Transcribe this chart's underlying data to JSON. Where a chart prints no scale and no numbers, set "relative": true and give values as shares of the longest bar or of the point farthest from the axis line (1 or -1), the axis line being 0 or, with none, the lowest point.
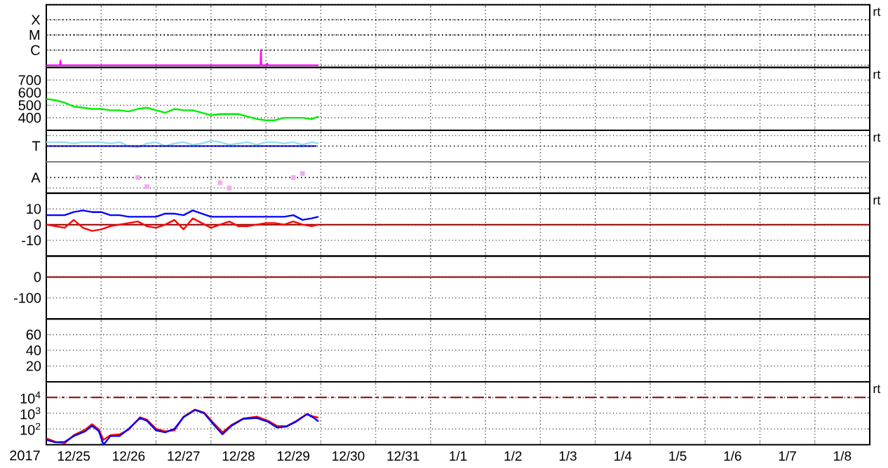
{
  "chart_data": [
    {
      "type": "line",
      "xlim": [
        "2017-12-25",
        "2018-01-09"
      ],
      "xticks": [
        {
          "value": "2017-12-26",
          "label": null
        },
        {
          "value": "2017-12-27",
          "label": null
        },
        {
          "value": "2017-12-28",
          "label": null
        },
        {
          "value": "2017-12-29",
          "label": null
        },
        {
          "value": "2017-12-30",
          "label": null
        },
        {
          "value": "2017-12-31",
          "label": null
        },
        {
          "value": "2018-01-01",
          "label": null
        },
        {
          "value": "2018-01-02",
          "label": null
        },
        {
          "value": "2018-01-03",
          "label": null
        },
        {
          "value": "2018-01-04",
          "label": null
        },
        {
          "value": "2018-01-05",
          "label": null
        },
        {
          "value": "2018-01-06",
          "label": null
        },
        {
          "value": "2018-01-07",
          "label": null
        },
        {
          "value": "2018-01-08",
          "label": null
        }
      ],
      "relative": true,
      "grid": true,
      "tick_labels": "y",
      "annotations": [
        "X",
        "M",
        "C",
        "rt"
      ],
      "series": [
        {
          "color": "#ff00ff",
          "x": [
            "2017-12-25T00:00",
            "2017-12-25T06:00",
            "2017-12-25T06:10",
            "2017-12-25T06:20",
            "2017-12-28T21:40",
            "2017-12-28T21:50",
            "2017-12-28T22:00",
            "2017-12-29T00:30",
            "2017-12-29T00:40",
            "2017-12-29T00:50",
            "2017-12-29T23:00"
          ],
          "values": [
            0,
            0,
            0.3,
            0,
            0,
            1,
            0,
            0,
            0.1,
            0,
            0
          ]
        }
      ]
    },
    {
      "type": "line",
      "xlim": [
        "2017-12-25",
        "2018-01-09"
      ],
      "xticks": [
        {
          "value": "2017-12-26",
          "label": null
        },
        {
          "value": "2017-12-27",
          "label": null
        },
        {
          "value": "2017-12-28",
          "label": null
        },
        {
          "value": "2017-12-29",
          "label": null
        },
        {
          "value": "2017-12-30",
          "label": null
        },
        {
          "value": "2017-12-31",
          "label": null
        },
        {
          "value": "2018-01-01",
          "label": null
        },
        {
          "value": "2018-01-02",
          "label": null
        },
        {
          "value": "2018-01-03",
          "label": null
        },
        {
          "value": "2018-01-04",
          "label": null
        },
        {
          "value": "2018-01-05",
          "label": null
        },
        {
          "value": "2018-01-06",
          "label": null
        },
        {
          "value": "2018-01-07",
          "label": null
        },
        {
          "value": "2018-01-08",
          "label": null
        }
      ],
      "ylim": [
        300,
        800
      ],
      "yticks": [
        400,
        500,
        600,
        700
      ],
      "grid": true,
      "tick_labels": "y",
      "annotations": [
        "rt"
      ],
      "x": [
        "2017-12-25T00:00",
        "2017-12-25T04:00",
        "2017-12-25T08:00",
        "2017-12-25T12:00",
        "2017-12-25T16:00",
        "2017-12-25T20:00",
        "2017-12-26T00:00",
        "2017-12-26T04:00",
        "2017-12-26T08:00",
        "2017-12-26T12:00",
        "2017-12-26T16:00",
        "2017-12-26T20:00",
        "2017-12-27T00:00",
        "2017-12-27T04:00",
        "2017-12-27T08:00",
        "2017-12-27T12:00",
        "2017-12-27T16:00",
        "2017-12-27T20:00",
        "2017-12-28T00:00",
        "2017-12-28T04:00",
        "2017-12-28T08:00",
        "2017-12-28T12:00",
        "2017-12-28T16:00",
        "2017-12-28T20:00",
        "2017-12-29T00:00",
        "2017-12-29T04:00",
        "2017-12-29T08:00",
        "2017-12-29T12:00",
        "2017-12-29T16:00",
        "2017-12-29T20:00",
        "2017-12-29T23:00"
      ],
      "series": [
        {
          "color": "#00ee00",
          "values": [
            550,
            540,
            520,
            490,
            480,
            470,
            470,
            460,
            460,
            450,
            470,
            480,
            460,
            440,
            470,
            460,
            460,
            440,
            420,
            430,
            430,
            430,
            410,
            390,
            380,
            380,
            400,
            400,
            400,
            390,
            410
          ]
        }
      ]
    },
    {
      "type": "line",
      "xlim": [
        "2017-12-25",
        "2018-01-09"
      ],
      "xticks": [
        {
          "value": "2017-12-26",
          "label": null
        },
        {
          "value": "2017-12-27",
          "label": null
        },
        {
          "value": "2017-12-28",
          "label": null
        },
        {
          "value": "2017-12-29",
          "label": null
        },
        {
          "value": "2017-12-30",
          "label": null
        },
        {
          "value": "2017-12-31",
          "label": null
        },
        {
          "value": "2018-01-01",
          "label": null
        },
        {
          "value": "2018-01-02",
          "label": null
        },
        {
          "value": "2018-01-03",
          "label": null
        },
        {
          "value": "2018-01-04",
          "label": null
        },
        {
          "value": "2018-01-05",
          "label": null
        },
        {
          "value": "2018-01-06",
          "label": null
        },
        {
          "value": "2018-01-07",
          "label": null
        },
        {
          "value": "2018-01-08",
          "label": null
        }
      ],
      "relative": true,
      "grid": true,
      "tick_labels": "y",
      "annotations": [
        "T",
        "A",
        "rt"
      ],
      "ref_lines": [
        {
          "axis": "y",
          "value": 0,
          "color": "#808080"
        }
      ],
      "x": [
        "2017-12-25T00:00",
        "2017-12-25T04:00",
        "2017-12-25T08:00",
        "2017-12-25T12:00",
        "2017-12-25T16:00",
        "2017-12-25T20:00",
        "2017-12-26T00:00",
        "2017-12-26T04:00",
        "2017-12-26T08:00",
        "2017-12-26T12:00",
        "2017-12-26T16:00",
        "2017-12-26T20:00",
        "2017-12-27T00:00",
        "2017-12-27T04:00",
        "2017-12-27T08:00",
        "2017-12-27T12:00",
        "2017-12-27T16:00",
        "2017-12-27T20:00",
        "2017-12-28T00:00",
        "2017-12-28T04:00",
        "2017-12-28T08:00",
        "2017-12-28T12:00",
        "2017-12-28T16:00",
        "2017-12-28T20:00",
        "2017-12-29T00:00",
        "2017-12-29T04:00",
        "2017-12-29T08:00",
        "2017-12-29T12:00",
        "2017-12-29T16:00",
        "2017-12-29T20:00",
        "2017-12-29T23:00"
      ],
      "series": [
        {
          "color": "#99ddf5",
          "values": [
            0.75,
            0.75,
            0.75,
            0.7,
            0.75,
            0.75,
            0.75,
            0.7,
            0.75,
            0.6,
            0.55,
            0.7,
            0.75,
            0.6,
            0.7,
            0.75,
            0.65,
            0.7,
            0.8,
            0.75,
            0.65,
            0.7,
            0.75,
            0.65,
            0.75,
            0.75,
            0.7,
            0.75,
            0.65,
            0.75,
            0.7
          ]
        },
        {
          "type": "scatter",
          "marker": "square",
          "color": "#f5aaf0",
          "values": [
            null,
            null,
            null,
            null,
            null,
            null,
            null,
            null,
            null,
            null,
            -0.6,
            -0.95,
            null,
            null,
            null,
            null,
            null,
            null,
            null,
            -0.8,
            -1,
            null,
            null,
            null,
            null,
            null,
            null,
            -0.6,
            -0.45,
            null,
            null
          ]
        },
        {
          "color": "#3333dd",
          "x": [
            "2017-12-25T00:00",
            "2017-12-29T22:00"
          ],
          "values": [
            0.6,
            0.6
          ]
        }
      ]
    },
    {
      "type": "line",
      "xlim": [
        "2017-12-25",
        "2018-01-09"
      ],
      "xticks": [
        {
          "value": "2017-12-26",
          "label": null
        },
        {
          "value": "2017-12-27",
          "label": null
        },
        {
          "value": "2017-12-28",
          "label": null
        },
        {
          "value": "2017-12-29",
          "label": null
        },
        {
          "value": "2017-12-30",
          "label": null
        },
        {
          "value": "2017-12-31",
          "label": null
        },
        {
          "value": "2018-01-01",
          "label": null
        },
        {
          "value": "2018-01-02",
          "label": null
        },
        {
          "value": "2018-01-03",
          "label": null
        },
        {
          "value": "2018-01-04",
          "label": null
        },
        {
          "value": "2018-01-05",
          "label": null
        },
        {
          "value": "2018-01-06",
          "label": null
        },
        {
          "value": "2018-01-07",
          "label": null
        },
        {
          "value": "2018-01-08",
          "label": null
        }
      ],
      "ylim": [
        -20,
        20
      ],
      "yticks": [
        -10,
        0,
        10
      ],
      "grid": true,
      "tick_labels": "y",
      "annotations": [
        "rt"
      ],
      "ref_lines": [
        {
          "axis": "y",
          "value": 0,
          "color": "#990000"
        }
      ],
      "x": [
        "2017-12-25T00:00",
        "2017-12-25T04:00",
        "2017-12-25T08:00",
        "2017-12-25T12:00",
        "2017-12-25T16:00",
        "2017-12-25T20:00",
        "2017-12-26T00:00",
        "2017-12-26T04:00",
        "2017-12-26T08:00",
        "2017-12-26T12:00",
        "2017-12-26T16:00",
        "2017-12-26T20:00",
        "2017-12-27T00:00",
        "2017-12-27T04:00",
        "2017-12-27T08:00",
        "2017-12-27T12:00",
        "2017-12-27T16:00",
        "2017-12-27T20:00",
        "2017-12-28T00:00",
        "2017-12-28T04:00",
        "2017-12-28T08:00",
        "2017-12-28T12:00",
        "2017-12-28T16:00",
        "2017-12-28T20:00",
        "2017-12-29T00:00",
        "2017-12-29T04:00",
        "2017-12-29T08:00",
        "2017-12-29T12:00",
        "2017-12-29T16:00",
        "2017-12-29T20:00",
        "2017-12-29T23:00"
      ],
      "series": [
        {
          "color": "#ff0000",
          "values": [
            0,
            -1,
            -2,
            3,
            -2,
            -4,
            -3,
            -1,
            0,
            1,
            2,
            -1,
            -2,
            0,
            3,
            -3,
            4,
            1,
            -2,
            0,
            2,
            -1,
            -1,
            0,
            1,
            1,
            0,
            2,
            0,
            -1,
            0
          ]
        },
        {
          "color": "#0000ff",
          "values": [
            6,
            6,
            6,
            8,
            9,
            8,
            8,
            6,
            6,
            5,
            5,
            5,
            5,
            7,
            7,
            6,
            9,
            7,
            5,
            5,
            5,
            5,
            5,
            5,
            5,
            5,
            5,
            6,
            3,
            4,
            5
          ]
        }
      ]
    },
    {
      "type": "line",
      "xlim": [
        "2017-12-25",
        "2018-01-09"
      ],
      "xticks": [
        {
          "value": "2017-12-26",
          "label": null
        },
        {
          "value": "2017-12-27",
          "label": null
        },
        {
          "value": "2017-12-28",
          "label": null
        },
        {
          "value": "2017-12-29",
          "label": null
        },
        {
          "value": "2017-12-30",
          "label": null
        },
        {
          "value": "2017-12-31",
          "label": null
        },
        {
          "value": "2018-01-01",
          "label": null
        },
        {
          "value": "2018-01-02",
          "label": null
        },
        {
          "value": "2018-01-03",
          "label": null
        },
        {
          "value": "2018-01-04",
          "label": null
        },
        {
          "value": "2018-01-05",
          "label": null
        },
        {
          "value": "2018-01-06",
          "label": null
        },
        {
          "value": "2018-01-07",
          "label": null
        },
        {
          "value": "2018-01-08",
          "label": null
        }
      ],
      "ylim": [
        -200,
        100
      ],
      "yticks": [
        -100,
        0
      ],
      "grid": true,
      "tick_labels": "y",
      "ref_lines": [
        {
          "axis": "y",
          "value": 0,
          "color": "#990000"
        }
      ]
    },
    {
      "type": "line",
      "xlim": [
        "2017-12-25",
        "2018-01-09"
      ],
      "xticks": [
        {
          "value": "2017-12-26",
          "label": null
        },
        {
          "value": "2017-12-27",
          "label": null
        },
        {
          "value": "2017-12-28",
          "label": null
        },
        {
          "value": "2017-12-29",
          "label": null
        },
        {
          "value": "2017-12-30",
          "label": null
        },
        {
          "value": "2017-12-31",
          "label": null
        },
        {
          "value": "2018-01-01",
          "label": null
        },
        {
          "value": "2018-01-02",
          "label": null
        },
        {
          "value": "2018-01-03",
          "label": null
        },
        {
          "value": "2018-01-04",
          "label": null
        },
        {
          "value": "2018-01-05",
          "label": null
        },
        {
          "value": "2018-01-06",
          "label": null
        },
        {
          "value": "2018-01-07",
          "label": null
        },
        {
          "value": "2018-01-08",
          "label": null
        }
      ],
      "ylim": [
        0,
        80
      ],
      "yticks": [
        20,
        40,
        60
      ],
      "grid": true,
      "tick_labels": "y"
    },
    {
      "type": "line",
      "log": true,
      "xlim": [
        "2017-12-25",
        "2018-01-09"
      ],
      "xticks": [
        {
          "value": "2017-12-25T12:00",
          "label": "12/25"
        },
        {
          "value": "2017-12-26",
          "label": null
        },
        {
          "value": "2017-12-26T12:00",
          "label": "12/26"
        },
        {
          "value": "2017-12-27",
          "label": null
        },
        {
          "value": "2017-12-27T12:00",
          "label": "12/27"
        },
        {
          "value": "2017-12-28",
          "label": null
        },
        {
          "value": "2017-12-28T12:00",
          "label": "12/28"
        },
        {
          "value": "2017-12-29",
          "label": null
        },
        {
          "value": "2017-12-29T12:00",
          "label": "12/29"
        },
        {
          "value": "2017-12-30",
          "label": null
        },
        {
          "value": "2017-12-30T12:00",
          "label": "12/30"
        },
        {
          "value": "2017-12-31",
          "label": null
        },
        {
          "value": "2017-12-31T12:00",
          "label": "12/31"
        },
        {
          "value": "2018-01-01",
          "label": null
        },
        {
          "value": "2018-01-01T12:00",
          "label": "1/1"
        },
        {
          "value": "2018-01-02",
          "label": null
        },
        {
          "value": "2018-01-02T12:00",
          "label": "1/2"
        },
        {
          "value": "2018-01-03",
          "label": null
        },
        {
          "value": "2018-01-03T12:00",
          "label": "1/3"
        },
        {
          "value": "2018-01-04",
          "label": null
        },
        {
          "value": "2018-01-04T12:00",
          "label": "1/4"
        },
        {
          "value": "2018-01-05",
          "label": null
        },
        {
          "value": "2018-01-05T12:00",
          "label": "1/5"
        },
        {
          "value": "2018-01-06",
          "label": null
        },
        {
          "value": "2018-01-06T12:00",
          "label": "1/6"
        },
        {
          "value": "2018-01-07",
          "label": null
        },
        {
          "value": "2018-01-07T12:00",
          "label": "1/7"
        },
        {
          "value": "2018-01-08",
          "label": null
        },
        {
          "value": "2018-01-08T12:00",
          "label": "1/8"
        }
      ],
      "ylim": [
        10,
        100000
      ],
      "yticks": [
        {
          "value": 100,
          "label": "10$^{2}$"
        },
        {
          "value": 1000,
          "label": "10$^{3}$"
        },
        {
          "value": 10000,
          "label": "10$^{4}$"
        }
      ],
      "grid": true,
      "xlabel": "2017",
      "annotations": [
        "rt"
      ],
      "ref_lines": [
        {
          "axis": "y",
          "value": 10000,
          "color": "#990000",
          "line_style": "dashed"
        }
      ],
      "x": [
        "2017-12-25T00:00",
        "2017-12-25T04:00",
        "2017-12-25T08:00",
        "2017-12-25T12:00",
        "2017-12-25T17:00",
        "2017-12-25T20:00",
        "2017-12-25T23:00",
        "2017-12-26T01:00",
        "2017-12-26T04:00",
        "2017-12-26T08:00",
        "2017-12-26T12:00",
        "2017-12-26T17:00",
        "2017-12-26T20:00",
        "2017-12-27T00:00",
        "2017-12-27T04:00",
        "2017-12-27T08:00",
        "2017-12-27T12:00",
        "2017-12-27T17:00",
        "2017-12-27T21:00",
        "2017-12-28T01:00",
        "2017-12-28T05:00",
        "2017-12-28T09:00",
        "2017-12-28T14:00",
        "2017-12-28T20:00",
        "2017-12-29T01:00",
        "2017-12-29T05:00",
        "2017-12-29T09:00",
        "2017-12-29T13:00",
        "2017-12-29T18:00",
        "2017-12-29T21:00",
        "2017-12-29T23:00"
      ],
      "series": [
        {
          "color": "#ff0000",
          "values": [
            25,
            15,
            12,
            40,
            90,
            200,
            90,
            20,
            40,
            45,
            90,
            550,
            380,
            100,
            70,
            80,
            600,
            1700,
            1100,
            250,
            60,
            180,
            450,
            600,
            330,
            150,
            150,
            300,
            900,
            600,
            520
          ]
        },
        {
          "color": "#0000ff",
          "values": [
            20,
            14,
            15,
            35,
            70,
            160,
            70,
            10,
            35,
            35,
            100,
            500,
            330,
            80,
            60,
            100,
            560,
            1600,
            1000,
            200,
            45,
            160,
            430,
            500,
            280,
            120,
            140,
            280,
            870,
            500,
            300
          ]
        }
      ]
    }
  ]
}
